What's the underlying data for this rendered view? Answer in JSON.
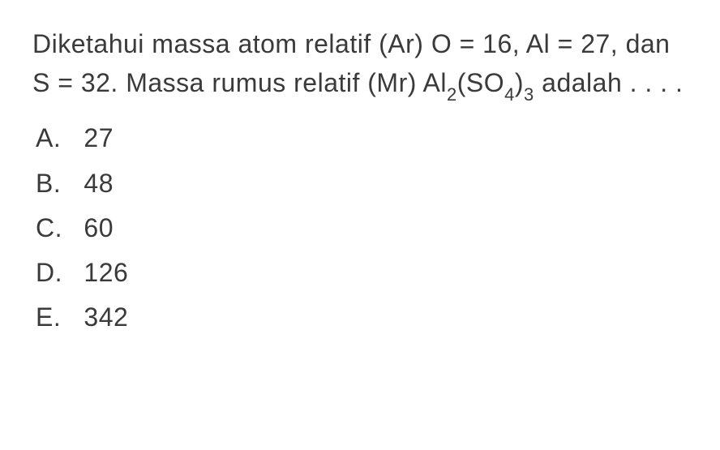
{
  "question": {
    "text_part1": "Diketahui massa atom relatif (Ar) O = 16, Al = 27, dan S = 32. Massa rumus relatif (Mr) Al",
    "sub1": "2",
    "text_part2": "(SO",
    "sub2": "4",
    "text_part3": ")",
    "sub3": "3",
    "text_part4": " adalah . . . .",
    "text_color": "#3a3a3a",
    "font_size": 32,
    "sub_font_size": 22,
    "background_color": "#ffffff"
  },
  "options": [
    {
      "label": "A.",
      "value": "27"
    },
    {
      "label": "B.",
      "value": "48"
    },
    {
      "label": "C.",
      "value": "60"
    },
    {
      "label": "D.",
      "value": "126"
    },
    {
      "label": "E.",
      "value": "342"
    }
  ]
}
